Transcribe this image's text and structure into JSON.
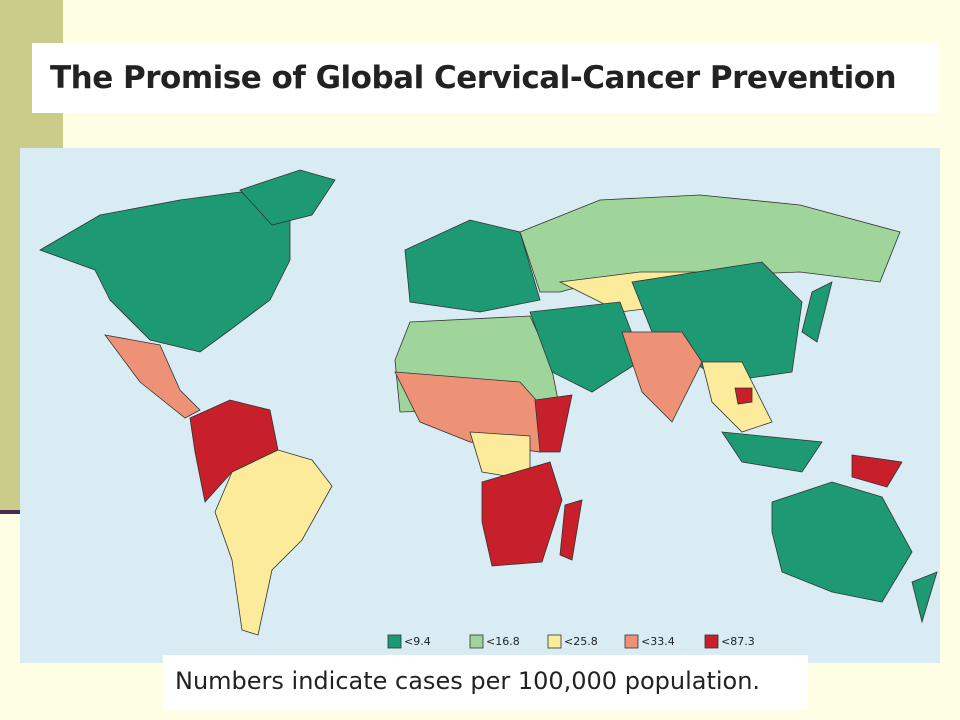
{
  "header": {
    "title": "The Promise of Global Cervical-Cancer Prevention"
  },
  "legend": {
    "items": [
      {
        "label": "<9.4",
        "color": "#1d9a73"
      },
      {
        "label": "<16.8",
        "color": "#9fd49a"
      },
      {
        "label": "<25.8",
        "color": "#fbeb9a"
      },
      {
        "label": "<33.4",
        "color": "#ee9277"
      },
      {
        "label": "<87.3",
        "color": "#c8202a"
      }
    ]
  },
  "caption": "Numbers indicate cases per 100,000 population."
}
